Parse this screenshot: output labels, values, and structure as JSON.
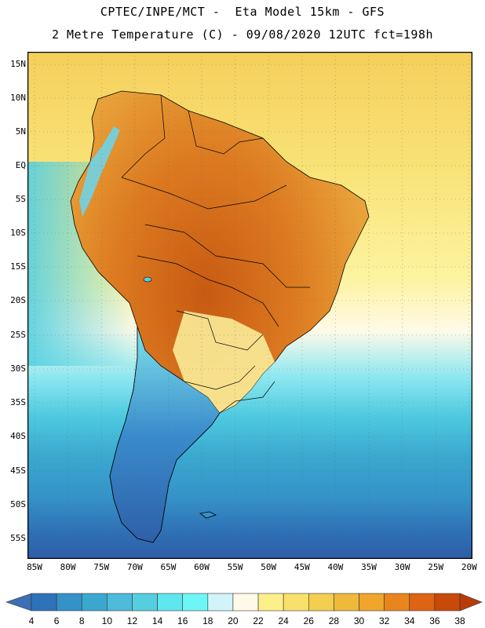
{
  "header": {
    "line1": "CPTEC/INPE/MCT -  Eta Model 15km - GFS",
    "line2": "2 Metre Temperature (C) - 09/08/2020 12UTC fct=198h"
  },
  "map": {
    "lat_labels": [
      "15N",
      "10N",
      "5N",
      "EQ",
      "5S",
      "10S",
      "15S",
      "20S",
      "25S",
      "30S",
      "35S",
      "40S",
      "45S",
      "50S",
      "55S"
    ],
    "lon_labels": [
      "85W",
      "80W",
      "75W",
      "70W",
      "65W",
      "60W",
      "55W",
      "50W",
      "45W",
      "40W",
      "35W",
      "30W",
      "25W",
      "20W"
    ]
  },
  "legend": {
    "labels": [
      "4",
      "6",
      "8",
      "10",
      "12",
      "14",
      "16",
      "18",
      "20",
      "22",
      "24",
      "26",
      "28",
      "30",
      "32",
      "34",
      "36",
      "38"
    ],
    "colors": [
      "#3c6fb3",
      "#2e73ba",
      "#3592c8",
      "#3aa7cf",
      "#4dbbd9",
      "#55cfe0",
      "#60e6ee",
      "#6ef6f6",
      "#d0f4fa",
      "#fffae8",
      "#fdf08a",
      "#f8e06a",
      "#f2cf50",
      "#efb93b",
      "#f0a52b",
      "#e8861d",
      "#de6414",
      "#c74a0a",
      "#b83b08"
    ]
  }
}
